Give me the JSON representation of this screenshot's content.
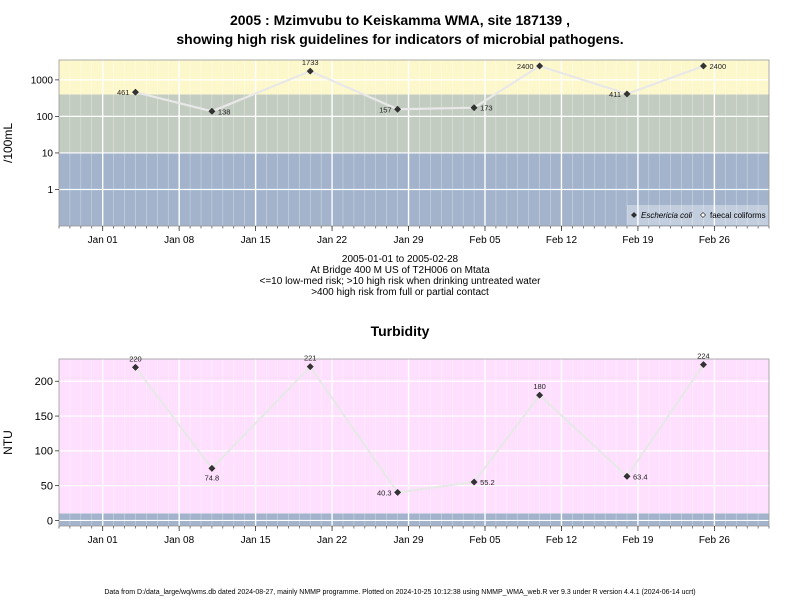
{
  "titles": {
    "main_line1": "2005 : Mzimvubu to Keiskamma WMA, site 187139 ,",
    "main_line2": "showing high risk guidelines for indicators of microbial pathogens.",
    "turbidity": "Turbidity"
  },
  "info": {
    "line1": "2005-01-01 to 2005-02-28",
    "line2": "At Bridge 400 M US of T2H006 on Mtata",
    "line3": "<=10 low-med risk; >10 high risk when drinking untreated water",
    "line4": ">400 high risk from full or partial contact"
  },
  "footer": "Data from D:/data_large/wq/wms.db dated 2024-08-27, mainly NMMP programme. Plotted on 2024-10-25 10:12:38 using NMMP_WMA_web.R ver 9.3 under R version 4.4.1 (2024-06-14 ucrt)",
  "colors": {
    "yellow_band": "#fdf8cc",
    "green_band": "#c3ccc1",
    "blue_band": "#a2b3cb",
    "pink_band": "#fee0fe",
    "line": "#e6e6e6",
    "point": "#333333"
  },
  "chart_data": [
    {
      "type": "line",
      "ylabel": "/100mL",
      "yscale": "log",
      "ylim": [
        0.1,
        3500
      ],
      "yticks": [
        1,
        10,
        100,
        1000
      ],
      "ytick_labels": [
        "1",
        "10",
        "100",
        "1000"
      ],
      "xlim": [
        "2004-12-28",
        "2005-03-03"
      ],
      "xticks": [
        "2005-01-01",
        "2005-01-08",
        "2005-01-15",
        "2005-01-22",
        "2005-01-29",
        "2005-02-05",
        "2005-02-12",
        "2005-02-19",
        "2005-02-26"
      ],
      "xtick_labels": [
        "Jan 01",
        "Jan 08",
        "Jan 15",
        "Jan 22",
        "Jan 29",
        "Feb 05",
        "Feb 12",
        "Feb 19",
        "Feb 26"
      ],
      "bands": [
        {
          "from": 0.1,
          "to": 10,
          "color": "#a2b3cb"
        },
        {
          "from": 10,
          "to": 400,
          "color": "#c3ccc1"
        },
        {
          "from": 400,
          "to": 3500,
          "color": "#fdf8cc"
        }
      ],
      "legend": {
        "position": "bottom-right",
        "entries": [
          "Eschericia coli",
          "faecal coliforms"
        ]
      },
      "series": [
        {
          "name": "Eschericia coli",
          "x": [
            "2005-01-04",
            "2005-01-11",
            "2005-01-20",
            "2005-01-28",
            "2005-02-04",
            "2005-02-10",
            "2005-02-18",
            "2005-02-25"
          ],
          "y": [
            461,
            138,
            1733,
            157,
            173,
            2400,
            411,
            2400
          ],
          "labels": [
            "461",
            "138",
            "1733",
            "157",
            "173",
            "2400",
            "411",
            "2400"
          ]
        }
      ]
    },
    {
      "type": "line",
      "title": "Turbidity",
      "ylabel": "NTU",
      "ylim": [
        -8,
        232
      ],
      "yticks": [
        0,
        50,
        100,
        150,
        200
      ],
      "ytick_labels": [
        "0",
        "50",
        "100",
        "150",
        "200"
      ],
      "xlim": [
        "2004-12-28",
        "2005-03-03"
      ],
      "xticks": [
        "2005-01-01",
        "2005-01-08",
        "2005-01-15",
        "2005-01-22",
        "2005-01-29",
        "2005-02-05",
        "2005-02-12",
        "2005-02-19",
        "2005-02-26"
      ],
      "xtick_labels": [
        "Jan 01",
        "Jan 08",
        "Jan 15",
        "Jan 22",
        "Jan 29",
        "Feb 05",
        "Feb 12",
        "Feb 19",
        "Feb 26"
      ],
      "bands": [
        {
          "from": -8,
          "to": 10,
          "color": "#a2b3cb"
        },
        {
          "from": 10,
          "to": 232,
          "color": "#fee0fe"
        }
      ],
      "series": [
        {
          "x": [
            "2005-01-04",
            "2005-01-11",
            "2005-01-20",
            "2005-01-28",
            "2005-02-04",
            "2005-02-10",
            "2005-02-18",
            "2005-02-25"
          ],
          "y": [
            220,
            74.8,
            221,
            40.3,
            55.2,
            180,
            63.4,
            224
          ],
          "labels": [
            "220",
            "74.8",
            "221",
            "40.3",
            "55.2",
            "180",
            "63.4",
            "224"
          ]
        }
      ]
    }
  ]
}
